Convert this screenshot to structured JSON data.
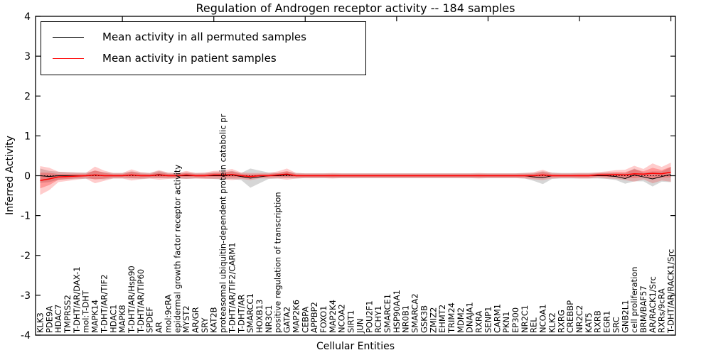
{
  "title": "Regulation of Androgen receptor activity -- 184 samples",
  "legend": {
    "items": [
      {
        "label": "Mean activity in all permuted samples",
        "color": "#000000"
      },
      {
        "label": "Mean activity in patient samples",
        "color": "#ff0000"
      }
    ],
    "position": "upper left"
  },
  "chart_data": {
    "type": "line",
    "title": "Regulation of Androgen receptor activity -- 184 samples",
    "xlabel": "Cellular Entities",
    "ylabel": "Inferred Activity",
    "ylim": [
      -4,
      4
    ],
    "yticks": [
      -4,
      -3,
      -2,
      -1,
      0,
      1,
      2,
      3,
      4
    ],
    "grid": false,
    "zero_line_style": "dotted",
    "legend_position": "upper left",
    "categories": [
      "KLK3",
      "PDE9A",
      "HDAC7",
      "TMPRSS2",
      "T-DHT/AR/DAX-1",
      "mol:T-DHT",
      "MAPK14",
      "T-DHT/AR/TIF2",
      "HDAC1",
      "MAPK8",
      "T-DHT/AR/Hsp90",
      "T-DHT/AR/TIP60",
      "SPDEF",
      "AR",
      "mol:9cRA",
      "epidermal growth factor receptor activity",
      "MYST2",
      "AR/GR",
      "SRY",
      "KAT2B",
      "proteasomal ubiquitin-dependent protein catabolic pr",
      "T-DHT/AR/TIF2/CARM1",
      "T-DHT/AR",
      "SMARCC1",
      "HOXB13",
      "NR3C1",
      "positive regulation of transcription",
      "GATA2",
      "MAP2K6",
      "CEBPA",
      "APPBP2",
      "FOXO1",
      "MAP2K4",
      "NCOA2",
      "SIRT1",
      "JUN",
      "POU2F1",
      "RCHY1",
      "SMARCE1",
      "HSP90AA1",
      "NR0B1",
      "SMARCA2",
      "GSK3B",
      "ZMIZ2",
      "EHMT2",
      "TRIM24",
      "MDM2",
      "DNAJA1",
      "RXRA",
      "SENP1",
      "CARM1",
      "PKN1",
      "EP300",
      "NR2C1",
      "REL",
      "NCOA1",
      "KLK2",
      "RXRG",
      "CREBBP",
      "NR2C2",
      "KAT5",
      "RXRB",
      "EGR1",
      "SRC",
      "GNB2L1",
      "cell proliferation",
      "BRM/BAF57",
      "AR/RACK1/Src",
      "RXRs/9cRA",
      "T-DHT/AR/RACK1/Src"
    ],
    "series": [
      {
        "name": "Mean activity in all permuted samples",
        "color": "#000000",
        "values": [
          0,
          -0.02,
          0,
          0,
          0,
          0,
          0.02,
          0,
          0,
          0,
          0.02,
          0,
          0,
          0.03,
          0,
          0,
          0,
          0,
          0,
          0,
          0,
          0.02,
          -0.02,
          -0.06,
          -0.03,
          0,
          0,
          0.02,
          0,
          0,
          0,
          0,
          0,
          0,
          0,
          0,
          0,
          0,
          0,
          0,
          0,
          0,
          0,
          0,
          0,
          0,
          0,
          0,
          0,
          0,
          0,
          0,
          0,
          0,
          -0.03,
          -0.05,
          0,
          0,
          0,
          0,
          0,
          0,
          0,
          -0.02,
          -0.07,
          0.02,
          -0.03,
          -0.08,
          -0.02,
          0.03
        ]
      },
      {
        "name": "Mean activity in patient samples",
        "color": "#ff0000",
        "values": [
          -0.12,
          -0.08,
          -0.03,
          -0.02,
          -0.01,
          0,
          0.02,
          0,
          0,
          0,
          0.02,
          0,
          0,
          0.02,
          0,
          0,
          0.02,
          0,
          0,
          0.02,
          0.02,
          0.03,
          0,
          -0.02,
          0,
          0,
          0.02,
          0.04,
          0,
          0,
          0,
          0,
          0,
          0,
          0,
          0,
          0,
          0,
          0,
          0,
          0,
          0,
          0,
          0,
          0,
          0,
          0,
          0,
          0,
          0,
          0,
          0,
          0,
          0,
          0,
          0.02,
          0,
          0,
          0,
          0,
          0,
          0.02,
          0.02,
          0.03,
          0.02,
          0.05,
          0.04,
          0.06,
          0.05,
          0.09
        ]
      }
    ],
    "bands": [
      {
        "name": "permuted-samples-band",
        "center_series": 0,
        "color": "rgba(120,120,120,0.30)",
        "half_widths": [
          0.18,
          0.14,
          0.1,
          0.09,
          0.08,
          0.08,
          0.1,
          0.09,
          0.07,
          0.07,
          0.09,
          0.08,
          0.07,
          0.09,
          0.07,
          0.07,
          0.08,
          0.07,
          0.07,
          0.08,
          0.09,
          0.1,
          0.09,
          0.24,
          0.16,
          0.08,
          0.07,
          0.08,
          0.07,
          0.06,
          0.06,
          0.06,
          0.06,
          0.06,
          0.06,
          0.06,
          0.06,
          0.06,
          0.06,
          0.06,
          0.06,
          0.06,
          0.06,
          0.06,
          0.06,
          0.06,
          0.06,
          0.06,
          0.06,
          0.06,
          0.06,
          0.06,
          0.06,
          0.07,
          0.1,
          0.16,
          0.08,
          0.07,
          0.07,
          0.07,
          0.07,
          0.07,
          0.08,
          0.09,
          0.13,
          0.16,
          0.11,
          0.19,
          0.13,
          0.19
        ]
      },
      {
        "name": "patient-samples-band",
        "center_series": 1,
        "color": "rgba(255,0,0,0.20)",
        "half_widths": [
          0.36,
          0.28,
          0.13,
          0.11,
          0.09,
          0.07,
          0.21,
          0.13,
          0.07,
          0.07,
          0.14,
          0.09,
          0.07,
          0.12,
          0.08,
          0.07,
          0.1,
          0.07,
          0.08,
          0.1,
          0.11,
          0.14,
          0.08,
          0.09,
          0.07,
          0.07,
          0.09,
          0.14,
          0.07,
          0.06,
          0.06,
          0.06,
          0.07,
          0.06,
          0.06,
          0.06,
          0.06,
          0.06,
          0.06,
          0.06,
          0.06,
          0.06,
          0.06,
          0.06,
          0.06,
          0.06,
          0.06,
          0.06,
          0.07,
          0.06,
          0.06,
          0.06,
          0.06,
          0.07,
          0.09,
          0.13,
          0.07,
          0.06,
          0.06,
          0.07,
          0.07,
          0.07,
          0.09,
          0.11,
          0.13,
          0.2,
          0.13,
          0.25,
          0.17,
          0.24
        ]
      }
    ]
  }
}
